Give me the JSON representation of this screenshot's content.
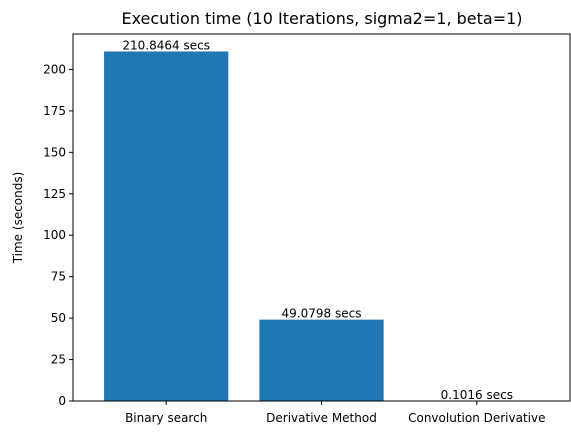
{
  "chart_data": {
    "type": "bar",
    "title": "Execution time (10 Iterations, sigma2=1, beta=1)",
    "xlabel": "",
    "ylabel": "Time (seconds)",
    "categories": [
      "Binary search",
      "Derivative Method",
      "Convolution Derivative"
    ],
    "values": [
      210.8464,
      49.0798,
      0.1016
    ],
    "data_labels": [
      "210.8464 secs",
      "49.0798 secs",
      "0.1016 secs"
    ],
    "ylim": [
      0,
      221.39
    ],
    "yticks": [
      0,
      25,
      50,
      75,
      100,
      125,
      150,
      175,
      200
    ],
    "grid": false,
    "legend": false,
    "bar_color": "#1f77b4"
  }
}
